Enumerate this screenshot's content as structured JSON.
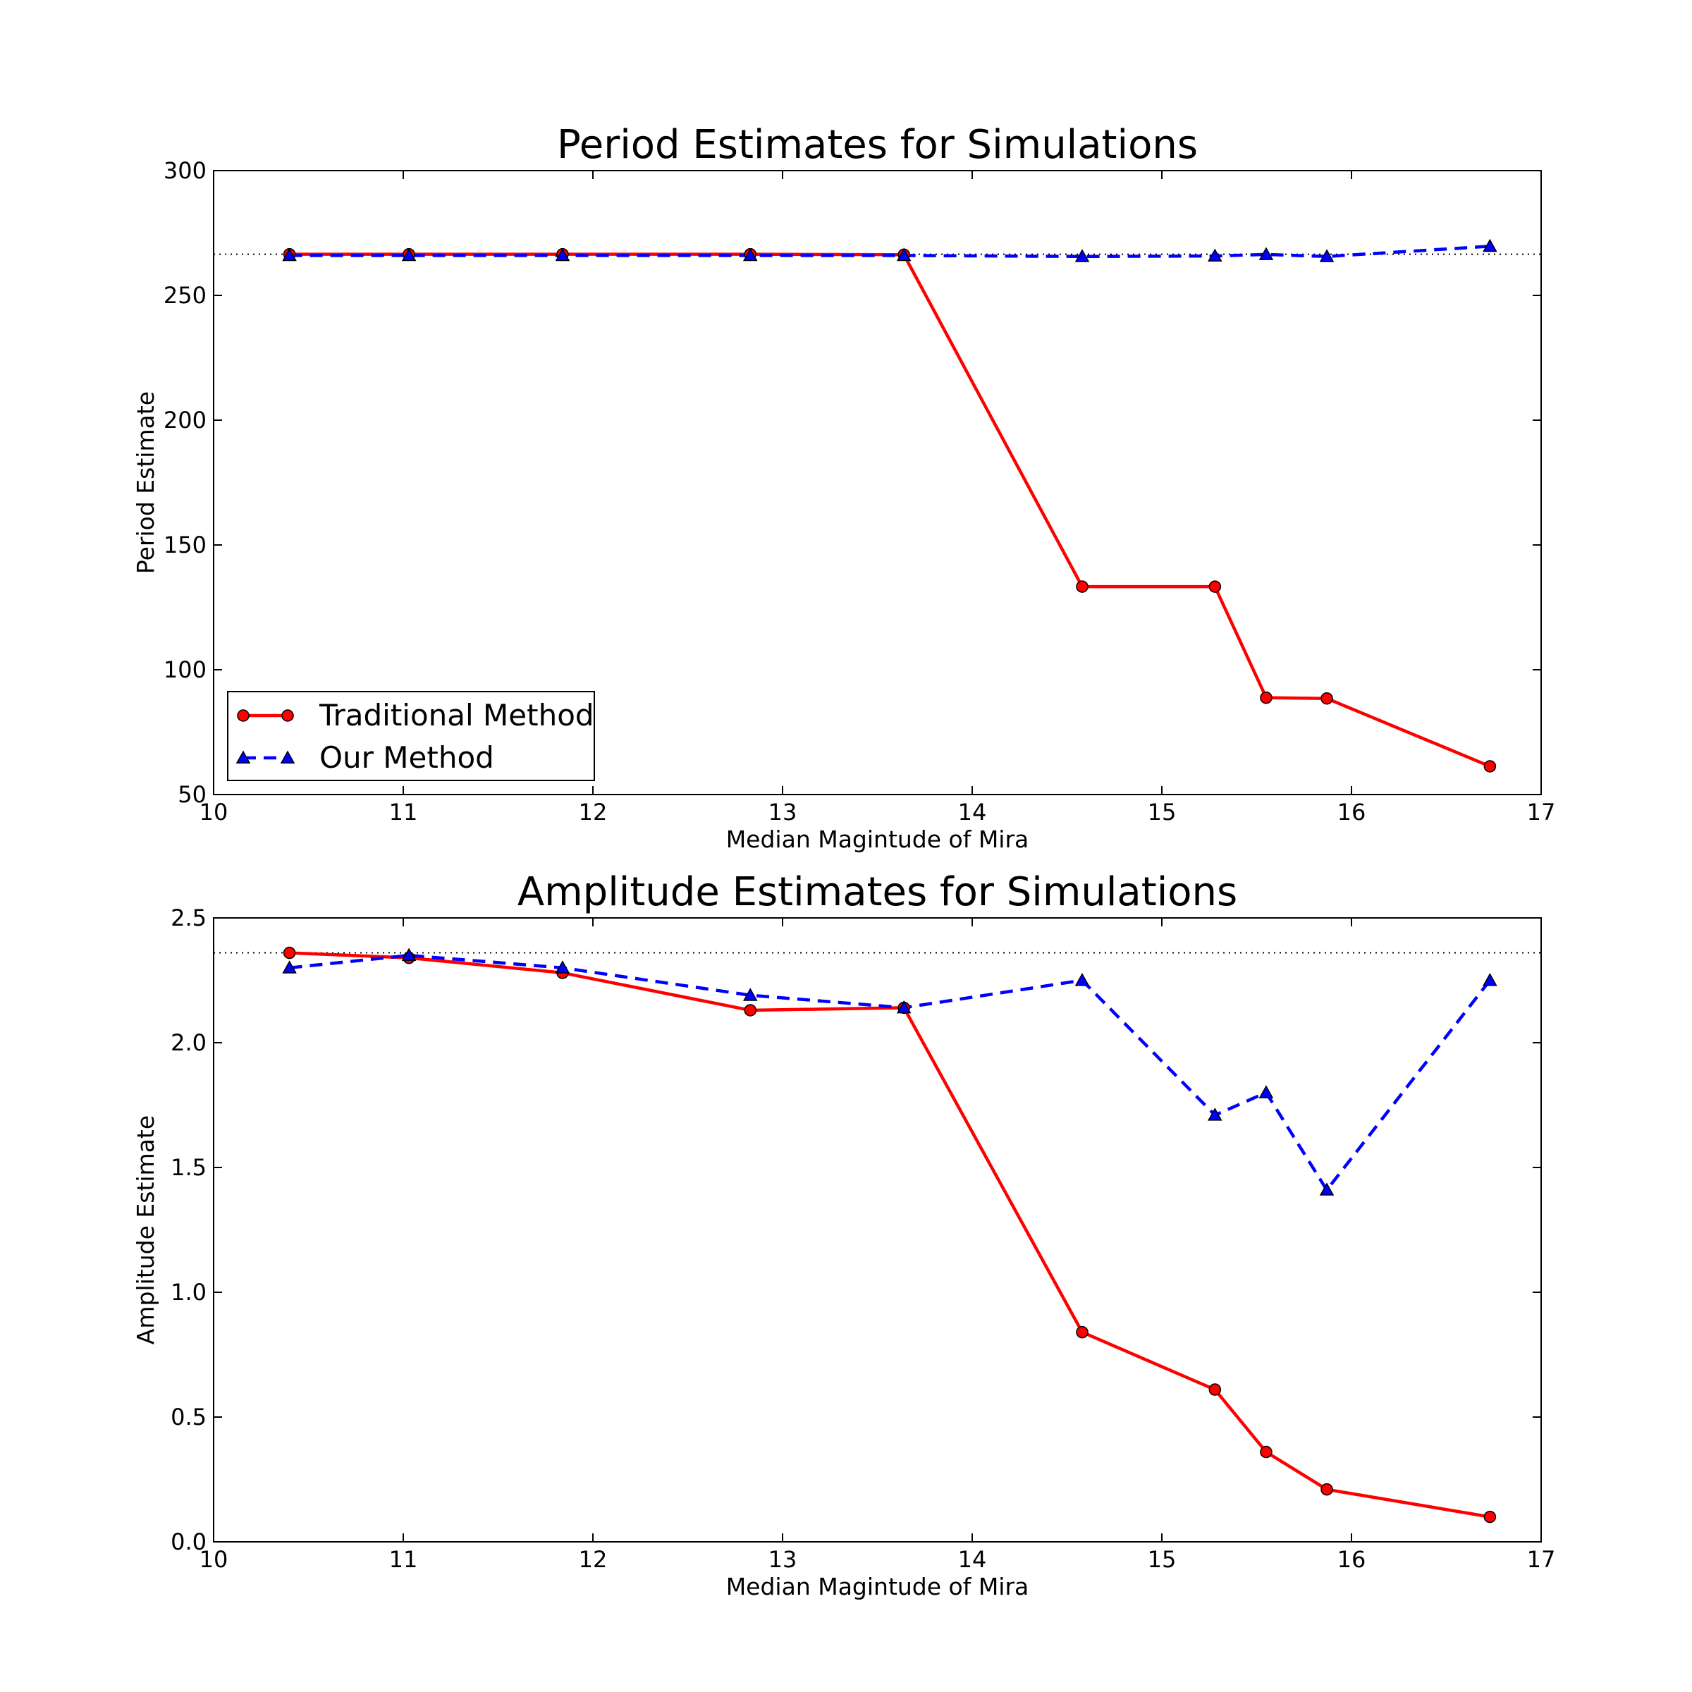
{
  "chart_data": [
    {
      "type": "line",
      "title": "Period Estimates for Simulations",
      "xlabel": "Median Magintude of Mira",
      "ylabel": "Period Estimate",
      "xlim": [
        10,
        17
      ],
      "ylim": [
        50,
        300
      ],
      "xticks": [
        "10",
        "11",
        "12",
        "13",
        "14",
        "15",
        "16",
        "17"
      ],
      "yticks": [
        "50",
        "100",
        "150",
        "200",
        "250",
        "300"
      ],
      "grid": false,
      "legend": "lower-left",
      "reference_line": 266.5,
      "x": [
        10.4,
        11.03,
        11.84,
        12.83,
        13.64,
        14.58,
        15.28,
        15.55,
        15.87,
        16.73
      ],
      "series": [
        {
          "name": "Traditional Method",
          "color": "#ff0000",
          "marker": "circle",
          "linestyle": "solid",
          "values": [
            266.5,
            266.5,
            266.5,
            266.5,
            266.3,
            133.3,
            133.3,
            88.8,
            88.5,
            61.3
          ]
        },
        {
          "name": "Our Method",
          "color": "#0000ff",
          "marker": "triangle",
          "linestyle": "dashed",
          "values": [
            266,
            266,
            266,
            266,
            266,
            265.6,
            265.8,
            266.4,
            265.6,
            269.7
          ]
        }
      ]
    },
    {
      "type": "line",
      "title": "Amplitude Estimates for Simulations",
      "xlabel": "Median Magintude of Mira",
      "ylabel": "Amplitude Estimate",
      "xlim": [
        10,
        17
      ],
      "ylim": [
        0,
        2.5
      ],
      "xticks": [
        "10",
        "11",
        "12",
        "13",
        "14",
        "15",
        "16",
        "17"
      ],
      "yticks": [
        "0.0",
        "0.5",
        "1.0",
        "1.5",
        "2.0",
        "2.5"
      ],
      "grid": false,
      "reference_line": 2.36,
      "x": [
        10.4,
        11.03,
        11.84,
        12.83,
        13.64,
        14.58,
        15.28,
        15.55,
        15.87,
        16.73
      ],
      "series": [
        {
          "name": "Traditional Method",
          "color": "#ff0000",
          "marker": "circle",
          "linestyle": "solid",
          "values": [
            2.36,
            2.34,
            2.28,
            2.13,
            2.14,
            0.84,
            0.61,
            0.36,
            0.21,
            0.1
          ]
        },
        {
          "name": "Our Method",
          "color": "#0000ff",
          "marker": "triangle",
          "linestyle": "dashed",
          "values": [
            2.3,
            2.35,
            2.3,
            2.19,
            2.14,
            2.25,
            1.71,
            1.8,
            1.41,
            2.25
          ]
        }
      ]
    }
  ]
}
